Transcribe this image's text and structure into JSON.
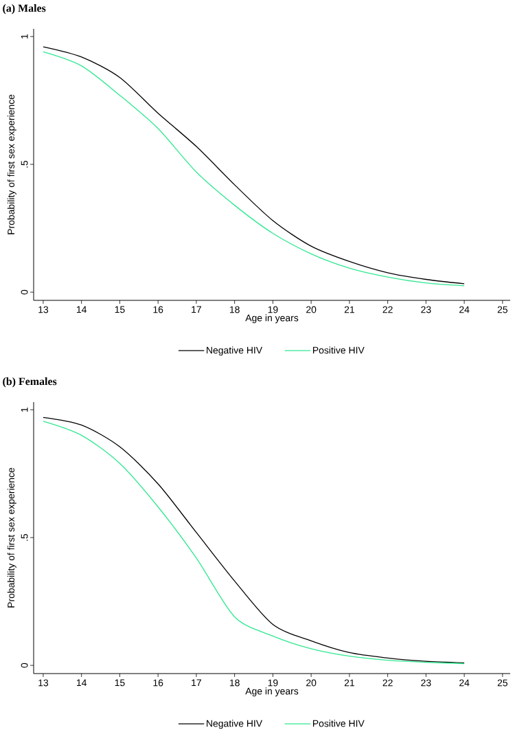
{
  "chart_data": [
    {
      "type": "line",
      "title": "(a) Males",
      "xlabel": "Age in years",
      "ylabel": "Probability of first sex experience",
      "x": [
        13,
        14,
        15,
        16,
        17,
        18,
        19,
        20,
        21,
        22,
        23,
        24
      ],
      "series": [
        {
          "name": "Negative HIV",
          "color": "#000000",
          "values": [
            0.96,
            0.92,
            0.84,
            0.7,
            0.57,
            0.42,
            0.28,
            0.18,
            0.12,
            0.076,
            0.05,
            0.033
          ]
        },
        {
          "name": "Positive HIV",
          "color": "#2ee88f",
          "values": [
            0.94,
            0.885,
            0.77,
            0.64,
            0.47,
            0.34,
            0.23,
            0.15,
            0.094,
            0.059,
            0.036,
            0.025
          ]
        }
      ],
      "xlim": [
        12.75,
        25.2
      ],
      "ylim": [
        -0.032,
        1.03
      ],
      "xticks": [
        13,
        14,
        15,
        16,
        17,
        18,
        19,
        20,
        21,
        22,
        23,
        24,
        25
      ],
      "yticks": [
        0,
        {
          "value": 0.5,
          "label": ".5"
        },
        1
      ],
      "legend": "bottom"
    },
    {
      "type": "line",
      "title": "(b) Females",
      "xlabel": "Age in years",
      "ylabel": "Probability of first sex experience",
      "x": [
        13,
        14,
        15,
        16,
        17,
        18,
        19,
        20,
        21,
        22,
        23,
        24
      ],
      "series": [
        {
          "name": "Negative HIV",
          "color": "#000000",
          "values": [
            0.97,
            0.94,
            0.855,
            0.71,
            0.52,
            0.33,
            0.16,
            0.096,
            0.05,
            0.029,
            0.016,
            0.01
          ]
        },
        {
          "name": "Positive HIV",
          "color": "#2ee88f",
          "values": [
            0.955,
            0.9,
            0.79,
            0.62,
            0.42,
            0.19,
            0.115,
            0.065,
            0.036,
            0.02,
            0.012,
            0.007
          ]
        }
      ],
      "xlim": [
        12.75,
        25.2
      ],
      "ylim": [
        -0.032,
        1.03
      ],
      "xticks": [
        13,
        14,
        15,
        16,
        17,
        18,
        19,
        20,
        21,
        22,
        23,
        24,
        25
      ],
      "yticks": [
        0,
        {
          "value": 0.5,
          "label": ".5"
        },
        1
      ],
      "legend": "bottom"
    }
  ]
}
